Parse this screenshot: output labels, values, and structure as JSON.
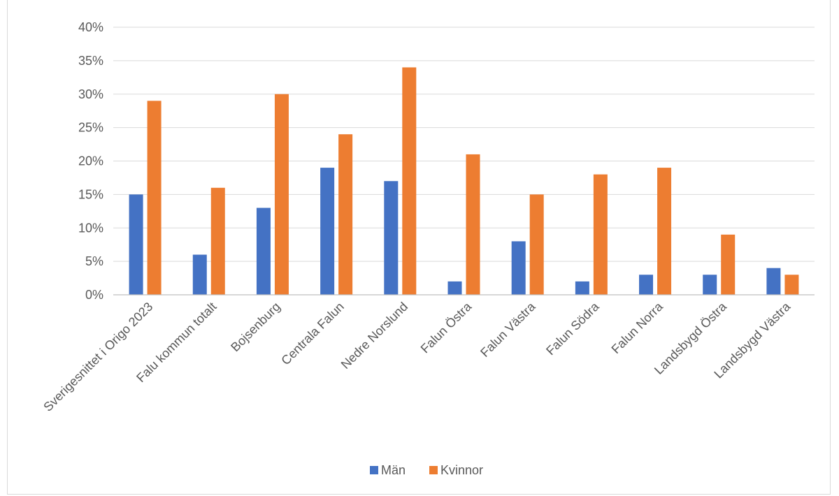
{
  "chart_data": {
    "type": "bar",
    "title": "",
    "xlabel": "",
    "ylabel": "",
    "ylim": [
      0,
      0.4
    ],
    "yticks": [
      "0%",
      "5%",
      "10%",
      "15%",
      "20%",
      "25%",
      "30%",
      "35%",
      "40%"
    ],
    "grid": true,
    "legend_position": "bottom",
    "categories": [
      "Sverigesnittet i Origo 2023",
      "Falu kommun totalt",
      "Bojsenburg",
      "Centrala Falun",
      "Nedre Norslund",
      "Falun Östra",
      "Falun Västra",
      "Falun Södra",
      "Falun Norra",
      "Landsbygd Östra",
      "Landsbygd Västra"
    ],
    "series": [
      {
        "name": "Män",
        "color": "#4472c4",
        "values": [
          0.15,
          0.06,
          0.13,
          0.19,
          0.17,
          0.02,
          0.08,
          0.02,
          0.03,
          0.03,
          0.04
        ]
      },
      {
        "name": "Kvinnor",
        "color": "#ed7d31",
        "values": [
          0.29,
          0.16,
          0.3,
          0.24,
          0.34,
          0.21,
          0.15,
          0.18,
          0.19,
          0.09,
          0.03
        ]
      }
    ]
  }
}
